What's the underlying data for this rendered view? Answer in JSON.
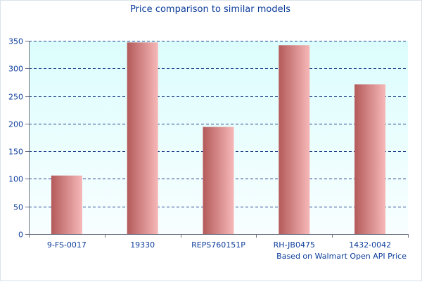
{
  "chart_data": {
    "type": "bar",
    "title": "Price comparison to similar models",
    "subtitle": "",
    "xlabel": "",
    "ylabel": "",
    "categories": [
      "9-FS-0017",
      "19330",
      "REPS760151P",
      "RH-JB0475",
      "1432-0042"
    ],
    "values": [
      106,
      347,
      194,
      342,
      271
    ],
    "ylim": [
      0,
      350
    ],
    "yticks": [
      0,
      50,
      100,
      150,
      200,
      250,
      300,
      350
    ],
    "grid": true,
    "legend": "none",
    "annotation": "Based on Walmart Open API Price"
  },
  "colors": {
    "text": "#0b3c9a",
    "axis": "#6b7280",
    "grid": "#1f3f8a",
    "plot_bg_top": "#dcfdfd",
    "plot_bg_bottom": "#f8feff",
    "bar_left": "#b45a5a",
    "bar_right": "#f7b8b8",
    "frame": "#d9e3ea"
  }
}
